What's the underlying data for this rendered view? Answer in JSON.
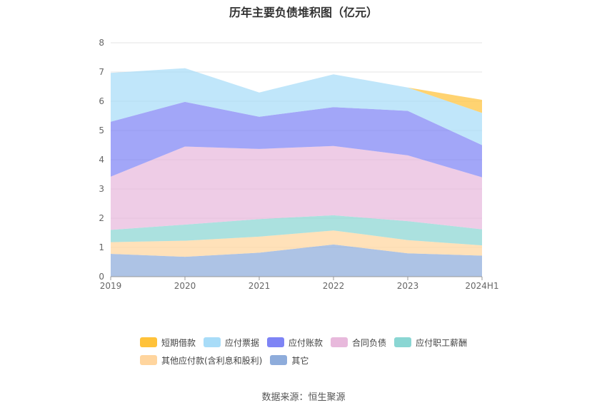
{
  "chart_data": {
    "type": "area",
    "title": "历年主要负债堆积图（亿元）",
    "source": "数据来源：恒生聚源",
    "categories": [
      "2019",
      "2020",
      "2021",
      "2022",
      "2023",
      "2024H1"
    ],
    "ylim": [
      0,
      8
    ],
    "yticks": [
      "0",
      "1",
      "2",
      "3",
      "4",
      "5",
      "6",
      "7",
      "8"
    ],
    "grid": true,
    "legend_position": "bottom",
    "stacked": true,
    "series": [
      {
        "name": "其它",
        "color": "#8eacdb",
        "values": [
          0.78,
          0.68,
          0.82,
          1.1,
          0.8,
          0.72
        ]
      },
      {
        "name": "其他应付款(含利息和股利)",
        "color": "#ffd59e",
        "values": [
          0.4,
          0.55,
          0.55,
          0.48,
          0.45,
          0.35
        ]
      },
      {
        "name": "应付职工薪酬",
        "color": "#8ad6d3",
        "values": [
          0.42,
          0.55,
          0.6,
          0.52,
          0.65,
          0.55
        ]
      },
      {
        "name": "合同负债",
        "color": "#e8b9dc",
        "values": [
          1.82,
          2.67,
          2.4,
          2.37,
          2.25,
          1.78
        ]
      },
      {
        "name": "应付账款",
        "color": "#7e84f5",
        "values": [
          1.88,
          1.53,
          1.1,
          1.33,
          1.52,
          1.1
        ]
      },
      {
        "name": "应付票据",
        "color": "#a8dcf8",
        "values": [
          1.67,
          1.15,
          0.83,
          1.12,
          0.8,
          1.1
        ]
      },
      {
        "name": "短期借款",
        "color": "#ffc23a",
        "values": [
          0,
          0,
          0,
          0,
          0,
          0.45
        ]
      }
    ],
    "legend_order": [
      "短期借款",
      "应付票据",
      "应付账款",
      "合同负债",
      "应付职工薪酬",
      "其他应付款(含利息和股利)",
      "其它"
    ]
  }
}
